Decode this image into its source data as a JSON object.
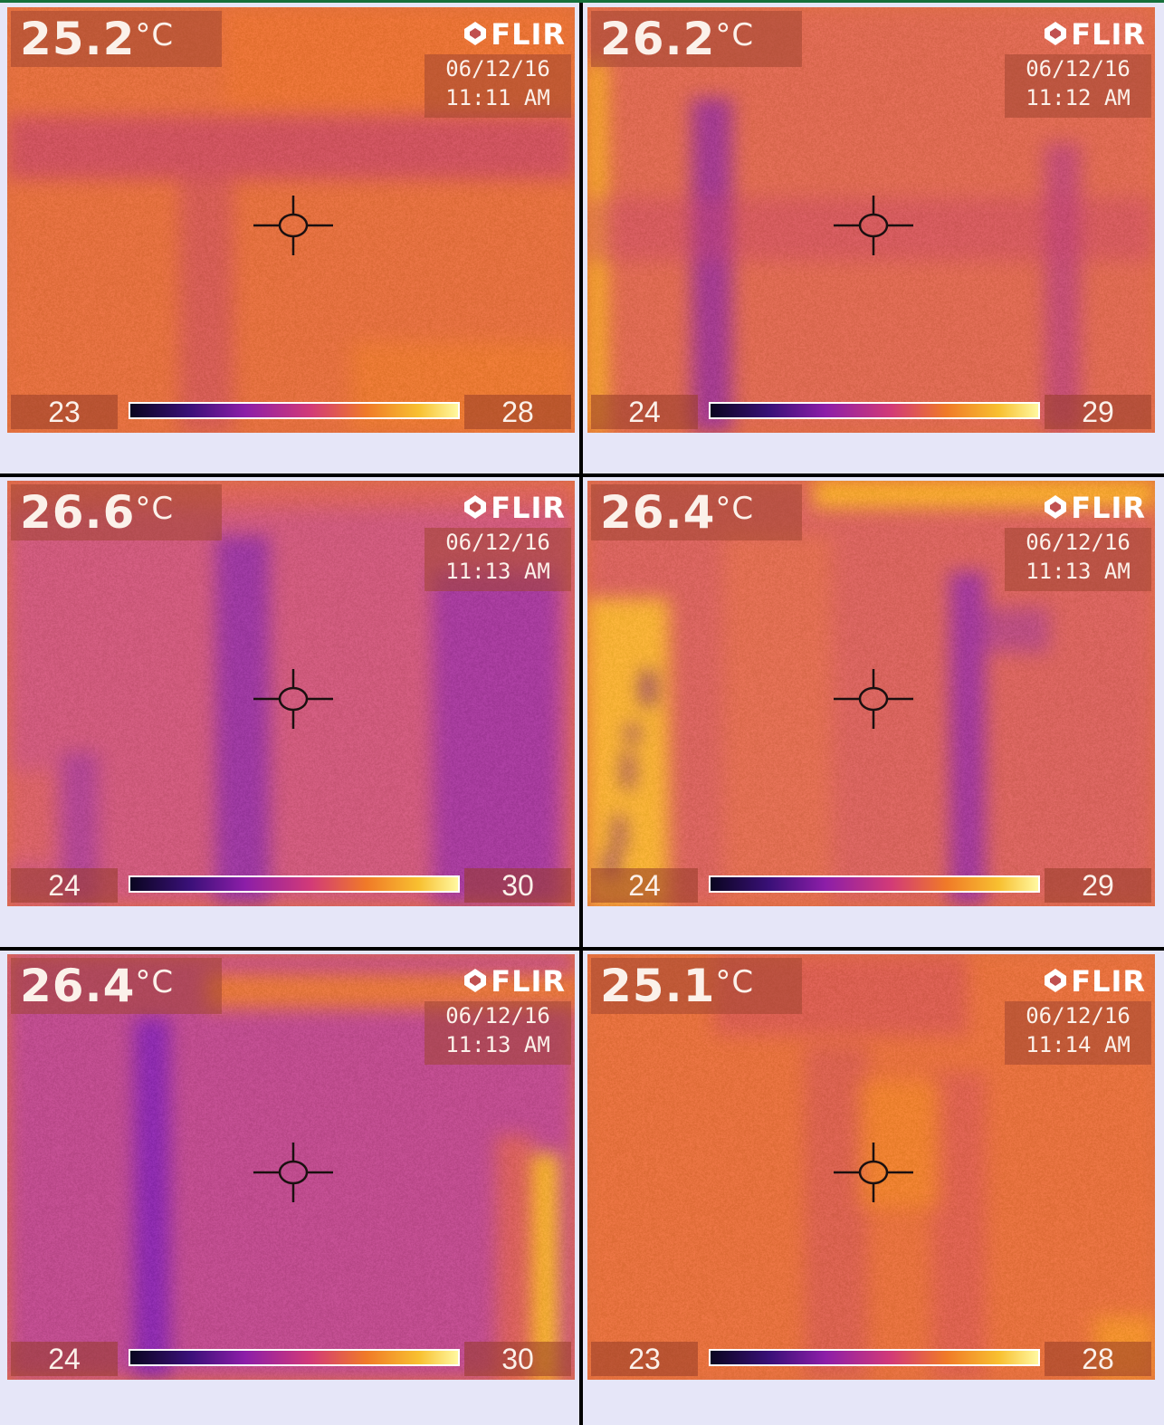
{
  "layout": "3x2 grid of thermal camera frames",
  "colors": {
    "background": "#e6e6f8",
    "divider": "#000000",
    "top_accent": "#16703a"
  },
  "frames": [
    {
      "temperature": "25.2",
      "unit": "°C",
      "brand": "FLIR",
      "date": "06/12/16",
      "time": "11:11 AM",
      "scale_min": "23",
      "scale_max": "28",
      "palette": "iron"
    },
    {
      "temperature": "26.2",
      "unit": "°C",
      "brand": "FLIR",
      "date": "06/12/16",
      "time": "11:12 AM",
      "scale_min": "24",
      "scale_max": "29",
      "palette": "iron"
    },
    {
      "temperature": "26.6",
      "unit": "°C",
      "brand": "FLIR",
      "date": "06/12/16",
      "time": "11:13 AM",
      "scale_min": "24",
      "scale_max": "30",
      "palette": "iron"
    },
    {
      "temperature": "26.4",
      "unit": "°C",
      "brand": "FLIR",
      "date": "06/12/16",
      "time": "11:13 AM",
      "scale_min": "24",
      "scale_max": "29",
      "palette": "iron"
    },
    {
      "temperature": "26.4",
      "unit": "°C",
      "brand": "FLIR",
      "date": "06/12/16",
      "time": "11:13 AM",
      "scale_min": "24",
      "scale_max": "30",
      "palette": "iron"
    },
    {
      "temperature": "25.1",
      "unit": "°C",
      "brand": "FLIR",
      "date": "06/12/16",
      "time": "11:14 AM",
      "scale_min": "23",
      "scale_max": "28",
      "palette": "iron"
    }
  ]
}
